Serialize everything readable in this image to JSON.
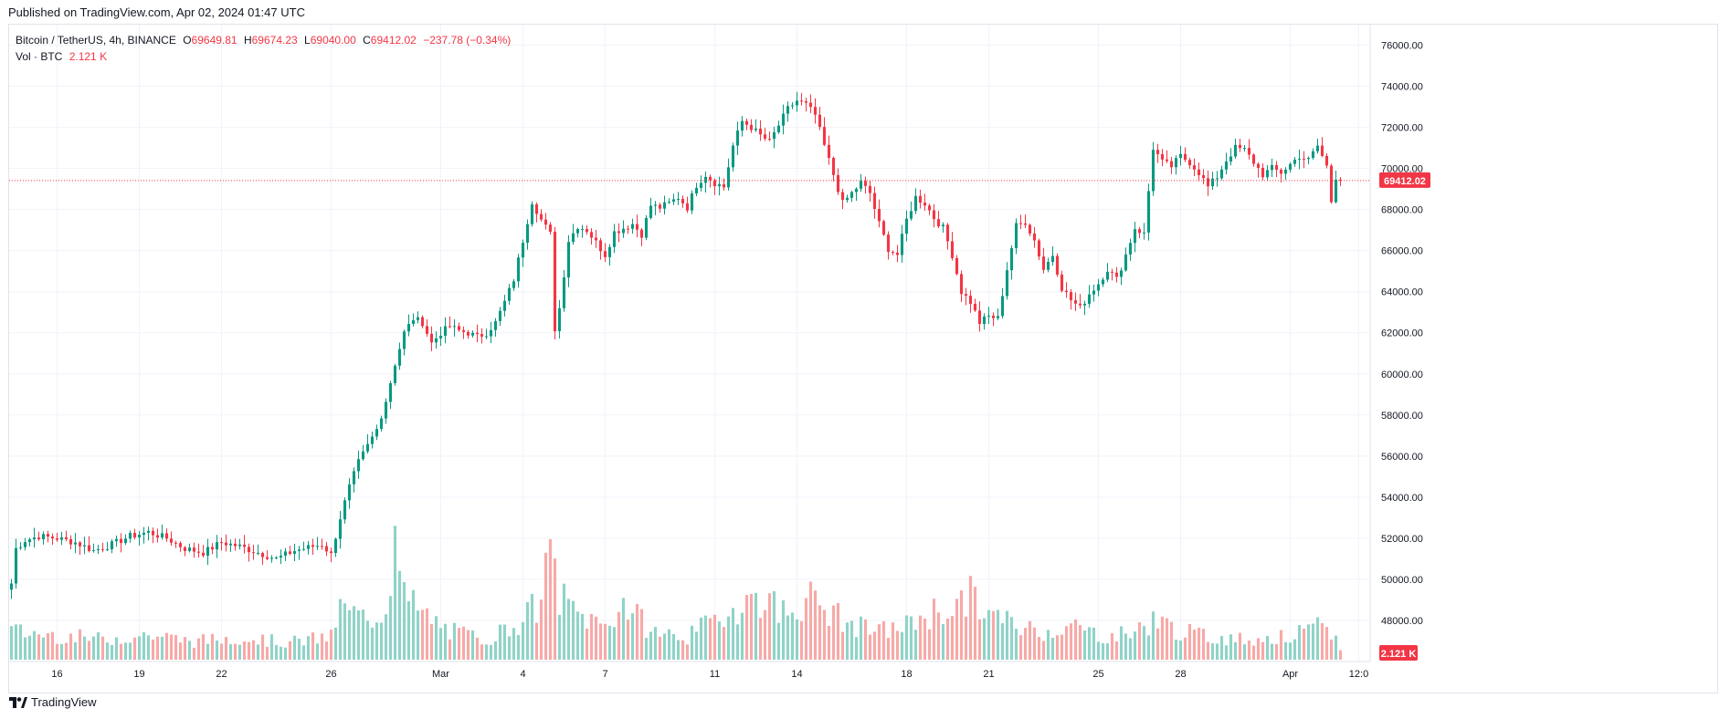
{
  "header": {
    "published": "Published on TradingView.com, Apr 02, 2024 01:47 UTC"
  },
  "legend": {
    "symbol": "Bitcoin / TetherUS, 4h, BINANCE",
    "o_label": "O",
    "o_value": "69649.81",
    "h_label": "H",
    "h_value": "69674.23",
    "l_label": "L",
    "l_value": "69040.00",
    "c_label": "C",
    "c_value": "69412.02",
    "change": "−237.78 (−0.34%)",
    "vol_label": "Vol · BTC",
    "vol_value": "2.121 K"
  },
  "footer": {
    "brand": "TradingView"
  },
  "colors": {
    "up": "#089981",
    "down": "#f23645",
    "up_vol": "#8fd3c8",
    "down_vol": "#f7a9a7",
    "grid": "#f0f3fa"
  },
  "chart_data": {
    "type": "candlestick",
    "interval": "4h",
    "y_axis": {
      "position": "right",
      "min": 46000,
      "max": 77000,
      "ticks": [
        "76000.00",
        "74000.00",
        "72000.00",
        "70000.00",
        "68000.00",
        "66000.00",
        "64000.00",
        "62000.00",
        "60000.00",
        "58000.00",
        "56000.00",
        "54000.00",
        "52000.00",
        "50000.00",
        "48000.00"
      ]
    },
    "x_ticks": [
      {
        "label": "16",
        "idx": 10
      },
      {
        "label": "19",
        "idx": 28
      },
      {
        "label": "22",
        "idx": 46
      },
      {
        "label": "26",
        "idx": 70
      },
      {
        "label": "Mar",
        "idx": 94
      },
      {
        "label": "4",
        "idx": 112
      },
      {
        "label": "7",
        "idx": 130
      },
      {
        "label": "11",
        "idx": 154
      },
      {
        "label": "14",
        "idx": 172
      },
      {
        "label": "18",
        "idx": 196
      },
      {
        "label": "21",
        "idx": 214
      },
      {
        "label": "25",
        "idx": 238
      },
      {
        "label": "28",
        "idx": 256
      },
      {
        "label": "Apr",
        "idx": 280
      },
      {
        "label": "12:0",
        "idx": 295
      }
    ],
    "last_price": 69412.02,
    "last_price_label": "69412.02",
    "last_volume_label": "2.121 K",
    "anchors": [
      [
        0,
        49800
      ],
      [
        1,
        51500
      ],
      [
        3,
        51900
      ],
      [
        6,
        52100
      ],
      [
        10,
        52000
      ],
      [
        14,
        51800
      ],
      [
        18,
        51400
      ],
      [
        22,
        51700
      ],
      [
        26,
        52100
      ],
      [
        30,
        52300
      ],
      [
        34,
        52000
      ],
      [
        38,
        51500
      ],
      [
        42,
        51300
      ],
      [
        46,
        51800
      ],
      [
        50,
        51600
      ],
      [
        54,
        51300
      ],
      [
        58,
        51000
      ],
      [
        62,
        51400
      ],
      [
        66,
        51600
      ],
      [
        68,
        51700
      ],
      [
        70,
        51200
      ],
      [
        72,
        53000
      ],
      [
        74,
        54500
      ],
      [
        76,
        55700
      ],
      [
        78,
        56500
      ],
      [
        80,
        57300
      ],
      [
        82,
        58700
      ],
      [
        84,
        60500
      ],
      [
        86,
        62000
      ],
      [
        88,
        62700
      ],
      [
        90,
        62500
      ],
      [
        92,
        61500
      ],
      [
        94,
        62000
      ],
      [
        96,
        62300
      ],
      [
        98,
        62100
      ],
      [
        100,
        62000
      ],
      [
        102,
        61800
      ],
      [
        104,
        62000
      ],
      [
        106,
        62500
      ],
      [
        108,
        63500
      ],
      [
        110,
        64600
      ],
      [
        112,
        66500
      ],
      [
        114,
        68400
      ],
      [
        116,
        67500
      ],
      [
        118,
        66800
      ],
      [
        119,
        62200
      ],
      [
        120,
        63200
      ],
      [
        122,
        66500
      ],
      [
        124,
        67200
      ],
      [
        126,
        67000
      ],
      [
        128,
        66400
      ],
      [
        130,
        65800
      ],
      [
        132,
        66900
      ],
      [
        134,
        67100
      ],
      [
        136,
        67300
      ],
      [
        138,
        66800
      ],
      [
        140,
        68200
      ],
      [
        142,
        68100
      ],
      [
        144,
        68300
      ],
      [
        146,
        68600
      ],
      [
        148,
        68100
      ],
      [
        150,
        69200
      ],
      [
        152,
        69700
      ],
      [
        154,
        69300
      ],
      [
        156,
        69100
      ],
      [
        158,
        71100
      ],
      [
        160,
        72300
      ],
      [
        162,
        72000
      ],
      [
        164,
        71600
      ],
      [
        166,
        71300
      ],
      [
        168,
        72100
      ],
      [
        170,
        72900
      ],
      [
        172,
        73300
      ],
      [
        174,
        73100
      ],
      [
        176,
        72600
      ],
      [
        178,
        71100
      ],
      [
        180,
        69700
      ],
      [
        182,
        68300
      ],
      [
        184,
        68800
      ],
      [
        186,
        69300
      ],
      [
        188,
        68800
      ],
      [
        190,
        67300
      ],
      [
        192,
        66100
      ],
      [
        194,
        65800
      ],
      [
        196,
        67500
      ],
      [
        198,
        68600
      ],
      [
        200,
        68300
      ],
      [
        202,
        67600
      ],
      [
        204,
        67100
      ],
      [
        206,
        65800
      ],
      [
        208,
        64000
      ],
      [
        210,
        63500
      ],
      [
        212,
        62500
      ],
      [
        214,
        62800
      ],
      [
        216,
        62700
      ],
      [
        218,
        65100
      ],
      [
        220,
        67200
      ],
      [
        222,
        67400
      ],
      [
        224,
        66500
      ],
      [
        226,
        65100
      ],
      [
        228,
        65800
      ],
      [
        230,
        64200
      ],
      [
        232,
        63600
      ],
      [
        234,
        63200
      ],
      [
        236,
        63900
      ],
      [
        238,
        64400
      ],
      [
        240,
        65100
      ],
      [
        242,
        64600
      ],
      [
        244,
        65800
      ],
      [
        246,
        67100
      ],
      [
        248,
        66800
      ],
      [
        250,
        71000
      ],
      [
        252,
        70300
      ],
      [
        254,
        70100
      ],
      [
        256,
        70600
      ],
      [
        258,
        70300
      ],
      [
        260,
        69800
      ],
      [
        262,
        69100
      ],
      [
        264,
        69600
      ],
      [
        266,
        70400
      ],
      [
        268,
        71000
      ],
      [
        270,
        70900
      ],
      [
        272,
        70300
      ],
      [
        274,
        69700
      ],
      [
        276,
        70000
      ],
      [
        278,
        69800
      ],
      [
        280,
        70200
      ],
      [
        282,
        70600
      ],
      [
        284,
        70400
      ],
      [
        286,
        71100
      ],
      [
        288,
        70100
      ],
      [
        289,
        68400
      ],
      [
        290,
        69600
      ],
      [
        291,
        69412
      ]
    ],
    "volume_anchors": [
      [
        0,
        0.25
      ],
      [
        20,
        0.18
      ],
      [
        30,
        0.22
      ],
      [
        40,
        0.16
      ],
      [
        50,
        0.2
      ],
      [
        60,
        0.15
      ],
      [
        70,
        0.2
      ],
      [
        72,
        0.45
      ],
      [
        78,
        0.35
      ],
      [
        82,
        0.45
      ],
      [
        84,
        1.0
      ],
      [
        86,
        0.55
      ],
      [
        90,
        0.4
      ],
      [
        96,
        0.25
      ],
      [
        104,
        0.18
      ],
      [
        110,
        0.3
      ],
      [
        116,
        0.5
      ],
      [
        118,
        0.95
      ],
      [
        120,
        0.55
      ],
      [
        124,
        0.4
      ],
      [
        130,
        0.3
      ],
      [
        134,
        0.5
      ],
      [
        140,
        0.25
      ],
      [
        148,
        0.2
      ],
      [
        156,
        0.4
      ],
      [
        160,
        0.5
      ],
      [
        164,
        0.55
      ],
      [
        170,
        0.4
      ],
      [
        174,
        0.55
      ],
      [
        178,
        0.45
      ],
      [
        184,
        0.3
      ],
      [
        190,
        0.25
      ],
      [
        196,
        0.3
      ],
      [
        200,
        0.4
      ],
      [
        206,
        0.45
      ],
      [
        210,
        0.55
      ],
      [
        214,
        0.4
      ],
      [
        220,
        0.3
      ],
      [
        226,
        0.25
      ],
      [
        232,
        0.3
      ],
      [
        240,
        0.2
      ],
      [
        246,
        0.25
      ],
      [
        250,
        0.35
      ],
      [
        256,
        0.25
      ],
      [
        262,
        0.2
      ],
      [
        270,
        0.18
      ],
      [
        280,
        0.2
      ],
      [
        286,
        0.28
      ],
      [
        290,
        0.2
      ],
      [
        291,
        0.1
      ]
    ]
  }
}
